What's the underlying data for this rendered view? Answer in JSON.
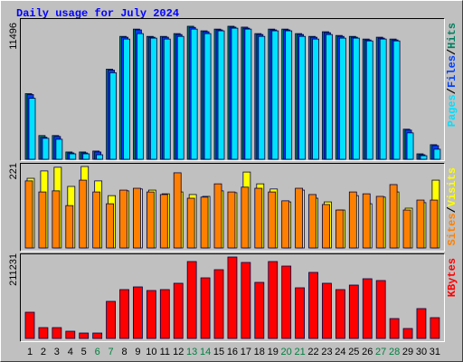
{
  "title": "Daily usage for July 2024",
  "categories": [
    "1",
    "2",
    "3",
    "4",
    "5",
    "6",
    "7",
    "8",
    "9",
    "10",
    "11",
    "12",
    "13",
    "14",
    "15",
    "16",
    "17",
    "18",
    "19",
    "20",
    "21",
    "22",
    "23",
    "24",
    "25",
    "26",
    "27",
    "28",
    "29",
    "30",
    "31"
  ],
  "category_color": "#000000",
  "highlight_color": "#008040",
  "highlight_indices": [
    5,
    6,
    12,
    13,
    19,
    20,
    26,
    27
  ],
  "legend_separator": "/",
  "chart_data": [
    {
      "type": "bar",
      "ylim": [
        0,
        11496
      ],
      "yticks": [
        11496
      ],
      "series": [
        {
          "name": "Hits",
          "color": "#008060",
          "values": [
            5670,
            2050,
            2050,
            630,
            630,
            710,
            7790,
            10620,
            11250,
            10620,
            10620,
            10860,
            11496,
            11100,
            11250,
            11496,
            11420,
            10860,
            11250,
            11250,
            10860,
            10620,
            11020,
            10700,
            10620,
            10390,
            10550,
            10390,
            2600,
            470,
            1260
          ]
        },
        {
          "name": "Files",
          "color": "#0040ff",
          "values": [
            5590,
            1900,
            1970,
            550,
            550,
            630,
            7700,
            10550,
            11180,
            10550,
            10550,
            10780,
            11400,
            11020,
            11180,
            11420,
            11330,
            10780,
            11180,
            11180,
            10780,
            10550,
            10940,
            10620,
            10550,
            10310,
            10470,
            10310,
            2520,
            390,
            1180
          ]
        },
        {
          "name": "Pages",
          "color": "#00e0ff",
          "values": [
            5270,
            1810,
            1730,
            470,
            470,
            390,
            7480,
            10390,
            10860,
            10470,
            10390,
            10620,
            11250,
            10860,
            11100,
            11330,
            11250,
            10620,
            11100,
            11100,
            10620,
            10390,
            10780,
            10470,
            10470,
            10230,
            10390,
            10230,
            2280,
            310,
            870
          ]
        }
      ]
    },
    {
      "type": "bar",
      "ylim": [
        0,
        221
      ],
      "yticks": [
        221
      ],
      "series": [
        {
          "name": "Visits",
          "color": "#ffff00",
          "values": [
            189,
            209,
            219,
            167,
            221,
            182,
            142,
            155,
            160,
            157,
            147,
            152,
            145,
            140,
            155,
            150,
            206,
            174,
            160,
            125,
            157,
            135,
            125,
            103,
            142,
            120,
            138,
            152,
            108,
            123,
            184
          ]
        },
        {
          "name": "Sites",
          "color": "#ff8000",
          "values": [
            182,
            152,
            155,
            115,
            184,
            152,
            120,
            157,
            162,
            152,
            145,
            204,
            135,
            138,
            174,
            152,
            165,
            162,
            152,
            128,
            162,
            145,
            118,
            103,
            152,
            147,
            140,
            172,
            103,
            130,
            130
          ]
        }
      ]
    },
    {
      "type": "bar",
      "ylim": [
        0,
        211231
      ],
      "yticks": [
        211231
      ],
      "series": [
        {
          "name": "KBytes",
          "color": "#ff0000",
          "values": [
            68060,
            28170,
            28170,
            18780,
            14080,
            14080,
            96230,
            126740,
            133780,
            124390,
            126740,
            143170,
            199500,
            157250,
            178370,
            211231,
            197150,
            145510,
            199500,
            187760,
            131430,
            171330,
            143170,
            126740,
            138470,
            154900,
            150210,
            51630,
            25820,
            77450,
            53980
          ]
        }
      ]
    }
  ]
}
